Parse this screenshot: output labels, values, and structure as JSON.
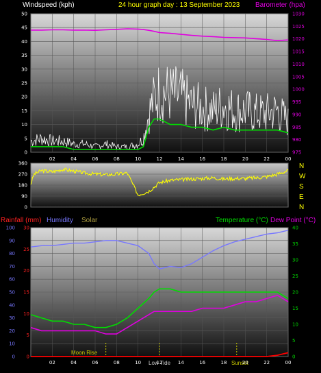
{
  "header": {
    "left": "Windspeed (kph)",
    "center": "24 hour graph day : 13 September 2023",
    "right": "Barometer (hpa)"
  },
  "compass": [
    "N",
    "W",
    "S",
    "E",
    "N"
  ],
  "bottom_header": {
    "rainfall": "Rainfall (mm)",
    "humidity": "Humidity",
    "solar": "Solar",
    "temperature": "Temperature (°C)",
    "dewpoint": "Dew Point (°C)"
  },
  "annotations": {
    "moonrise": "Moon Rise",
    "lowtide": "Low Tide",
    "sunset": "Sunset"
  },
  "colors": {
    "windspeed": "#ffffff",
    "gust": "#00dd00",
    "barometer": "#e000e0",
    "direction": "#ffff00",
    "humidity": "#7777ff",
    "temperature": "#00dd00",
    "dewpoint": "#e000e0",
    "rainfall": "#ff0000",
    "solar": "#cccc00",
    "title": "#ffff00"
  },
  "chart_data": [
    {
      "type": "line",
      "x_ticks": [
        "02",
        "04",
        "06",
        "08",
        "10",
        "12",
        "14",
        "16",
        "18",
        "20",
        "22",
        "00"
      ],
      "ylim_left": [
        0,
        50
      ],
      "y_ticks_left": [
        "0",
        "5",
        "10",
        "15",
        "20",
        "25",
        "30",
        "35",
        "40",
        "45",
        "50"
      ],
      "ylim_right": [
        975,
        1030
      ],
      "y_ticks_right": [
        "975",
        "980",
        "985",
        "990",
        "995",
        "1000",
        "1005",
        "1010",
        "1015",
        "1020",
        "1025",
        "1030"
      ],
      "x": [
        0,
        1,
        2,
        3,
        4,
        5,
        6,
        7,
        8,
        9,
        10,
        10.5,
        11,
        11.5,
        12,
        13,
        14,
        15,
        16,
        17,
        18,
        19,
        20,
        21,
        22,
        23,
        24
      ],
      "series": [
        {
          "key": "wind",
          "values": [
            4,
            5,
            4,
            4,
            3,
            3,
            2,
            3,
            2,
            2,
            3,
            5,
            14,
            19,
            22,
            21,
            20,
            17,
            16,
            15,
            17,
            15,
            15,
            14,
            14,
            15,
            11
          ]
        },
        {
          "key": "gust",
          "values": [
            2,
            2,
            2,
            2,
            1,
            1,
            1,
            1,
            1,
            1,
            1,
            2,
            9,
            12,
            12,
            10,
            10,
            9,
            9,
            8,
            9,
            8,
            8,
            8,
            8,
            8,
            7
          ]
        },
        {
          "key": "baro",
          "values": [
            1023.5,
            1023.5,
            1023.6,
            1023.6,
            1023.5,
            1023.5,
            1023.4,
            1023.6,
            1023.8,
            1024,
            1023.9,
            1023.7,
            1023.4,
            1023,
            1022.5,
            1022.2,
            1021.8,
            1021.4,
            1021.1,
            1020.9,
            1020.6,
            1020.5,
            1020.4,
            1020.1,
            1019.8,
            1019.3,
            1019.6
          ]
        }
      ]
    },
    {
      "type": "scatter",
      "y_ticks": [
        "0",
        "90",
        "180",
        "270",
        "360"
      ],
      "ylim": [
        0,
        360
      ],
      "x": [
        0,
        0.3,
        1,
        2,
        3,
        4,
        5,
        6,
        7,
        8,
        9,
        10,
        11,
        12,
        13,
        14,
        15,
        16,
        17,
        18,
        19,
        20,
        21,
        22,
        23,
        24
      ],
      "values": [
        190,
        270,
        300,
        290,
        310,
        295,
        280,
        270,
        265,
        270,
        280,
        100,
        130,
        200,
        220,
        225,
        230,
        235,
        240,
        230,
        235,
        235,
        240,
        250,
        270,
        300
      ]
    },
    {
      "type": "line",
      "x_ticks": [
        "02",
        "04",
        "06",
        "08",
        "10",
        "12",
        "14",
        "16",
        "18",
        "20",
        "22",
        "00"
      ],
      "ylim_humidity": [
        0,
        100
      ],
      "y_ticks_humidity": [
        "0",
        "10",
        "20",
        "30",
        "40",
        "50",
        "60",
        "70",
        "80",
        "90",
        "100"
      ],
      "ylim_rain": [
        0,
        30
      ],
      "y_ticks_rain": [
        "0",
        "5",
        "10",
        "15",
        "20",
        "25",
        "30"
      ],
      "ylim_temp": [
        0,
        40
      ],
      "y_ticks_temp": [
        "0",
        "5",
        "10",
        "15",
        "20",
        "25",
        "30",
        "35",
        "40"
      ],
      "x": [
        0,
        1,
        2,
        3,
        4,
        5,
        6,
        7,
        8,
        9,
        10,
        11,
        11.5,
        12,
        13,
        14,
        15,
        16,
        17,
        18,
        19,
        20,
        21,
        22,
        23,
        24
      ],
      "series": [
        {
          "key": "humidity",
          "values": [
            85,
            86,
            86,
            87,
            88,
            88,
            89,
            90,
            90,
            88,
            86,
            80,
            72,
            68,
            70,
            69,
            72,
            77,
            82,
            86,
            89,
            91,
            93,
            95,
            96,
            98
          ]
        },
        {
          "key": "temperature",
          "values": [
            13,
            12,
            11,
            11,
            10,
            10,
            9,
            9,
            10,
            12,
            15,
            18,
            20,
            21,
            21,
            20,
            20,
            20,
            20,
            20,
            20,
            20,
            20,
            20,
            20,
            18
          ]
        },
        {
          "key": "dewpoint",
          "values": [
            9,
            8,
            8,
            8,
            8,
            8,
            8,
            7,
            7,
            9,
            11,
            13,
            14,
            14,
            14,
            14,
            14,
            15,
            15,
            15,
            16,
            17,
            17,
            18,
            19,
            17
          ]
        },
        {
          "key": "rainfall",
          "values": [
            0,
            0,
            0,
            0,
            0,
            0,
            0,
            0,
            0,
            0,
            0,
            0,
            0,
            0,
            0,
            0,
            0,
            0,
            0,
            0,
            0,
            0,
            0,
            0,
            0.3,
            0.9
          ]
        }
      ]
    }
  ]
}
